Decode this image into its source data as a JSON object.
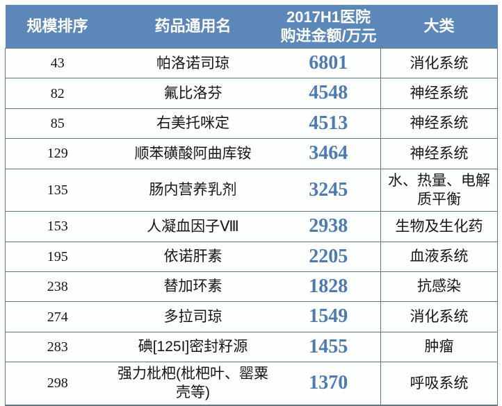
{
  "table": {
    "headers": {
      "rank": "规模排序",
      "drug_name": "药品通用名",
      "amount_line1": "2017H1医院",
      "amount_line2": "购进金额/万元",
      "category": "大类"
    },
    "rows": [
      {
        "rank": "43",
        "name": "帕洛诺司琼",
        "amount": "6801",
        "category": "消化系统"
      },
      {
        "rank": "82",
        "name": "氟比洛芬",
        "amount": "4548",
        "category": "神经系统"
      },
      {
        "rank": "85",
        "name": "右美托咪定",
        "amount": "4513",
        "category": "神经系统"
      },
      {
        "rank": "129",
        "name": "顺苯磺酸阿曲库铵",
        "amount": "3464",
        "category": "神经系统"
      },
      {
        "rank": "135",
        "name": "肠内营养乳剂",
        "amount": "3245",
        "category": "水、热量、电解质平衡"
      },
      {
        "rank": "153",
        "name": "人凝血因子Ⅷ",
        "amount": "2938",
        "category": "生物及生化药"
      },
      {
        "rank": "195",
        "name": "依诺肝素",
        "amount": "2205",
        "category": "血液系统"
      },
      {
        "rank": "238",
        "name": "替加环素",
        "amount": "1828",
        "category": "抗感染"
      },
      {
        "rank": "274",
        "name": "多拉司琼",
        "amount": "1549",
        "category": "消化系统"
      },
      {
        "rank": "283",
        "name": "碘[125I]密封籽源",
        "amount": "1455",
        "category": "肿瘤"
      },
      {
        "rank": "298",
        "name": "强力枇杷(枇杷叶、罂粟壳等)",
        "amount": "1370",
        "category": "呼吸系统"
      }
    ],
    "colors": {
      "header_bg": "#5b87b9",
      "header_text": "#ffffff",
      "amount_text": "#4d7ab2",
      "border": "#5f7880",
      "body_text": "#161616"
    }
  },
  "chart_data": {
    "type": "table",
    "title": "2017H1医院购进金额/万元",
    "columns": [
      "规模排序",
      "药品通用名",
      "2017H1医院购进金额/万元",
      "大类"
    ],
    "rows": [
      [
        43,
        "帕洛诺司琼",
        6801,
        "消化系统"
      ],
      [
        82,
        "氟比洛芬",
        4548,
        "神经系统"
      ],
      [
        85,
        "右美托咪定",
        4513,
        "神经系统"
      ],
      [
        129,
        "顺苯磺酸阿曲库铵",
        3464,
        "神经系统"
      ],
      [
        135,
        "肠内营养乳剂",
        3245,
        "水、热量、电解质平衡"
      ],
      [
        153,
        "人凝血因子Ⅷ",
        2938,
        "生物及生化药"
      ],
      [
        195,
        "依诺肝素",
        2205,
        "血液系统"
      ],
      [
        238,
        "替加环素",
        1828,
        "抗感染"
      ],
      [
        274,
        "多拉司琼",
        1549,
        "消化系统"
      ],
      [
        283,
        "碘[125I]密封籽源",
        1455,
        "肿瘤"
      ],
      [
        298,
        "强力枇杷(枇杷叶、罂粟壳等)",
        1370,
        "呼吸系统"
      ]
    ]
  }
}
